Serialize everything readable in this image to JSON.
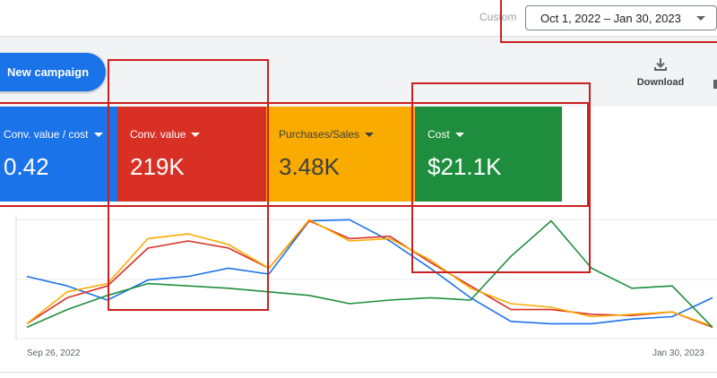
{
  "header": {
    "custom_label": "Custom",
    "date_range": "Oct 1, 2022 – Jan 30, 2023"
  },
  "toolbar": {
    "new_campaign_label": "New campaign",
    "download_label": "Download"
  },
  "metrics": [
    {
      "title": "Conv. value / cost",
      "value": "0.42",
      "color": "#1a73e8"
    },
    {
      "title": "Conv. value",
      "value": "219K",
      "color": "#d93025"
    },
    {
      "title": "Purchases/Sales",
      "value": "3.48K",
      "color": "#f9ab00"
    },
    {
      "title": "Cost",
      "value": "$21.1K",
      "color": "#1e8e3e"
    }
  ],
  "chart_data": {
    "type": "line",
    "x_start_label": "Sep 26, 2022",
    "x_end_label": "Jan 30, 2023",
    "ylim": [
      0,
      100
    ],
    "series": [
      {
        "color": "#1a73e8",
        "values": [
          48,
          40,
          28,
          45,
          48,
          55,
          50,
          95,
          96,
          78,
          55,
          30,
          10,
          8,
          8,
          12,
          14,
          30
        ]
      },
      {
        "color": "#d93025",
        "values": [
          8,
          30,
          40,
          72,
          78,
          72,
          55,
          95,
          80,
          82,
          60,
          40,
          20,
          20,
          16,
          15,
          18,
          5
        ]
      },
      {
        "color": "#f9ab00",
        "values": [
          8,
          35,
          42,
          80,
          84,
          75,
          55,
          96,
          78,
          80,
          62,
          38,
          25,
          22,
          14,
          16,
          18,
          6
        ]
      },
      {
        "color": "#1e8e3e",
        "values": [
          5,
          20,
          32,
          42,
          40,
          38,
          35,
          32,
          25,
          28,
          30,
          28,
          65,
          95,
          55,
          38,
          40,
          5
        ]
      }
    ]
  }
}
